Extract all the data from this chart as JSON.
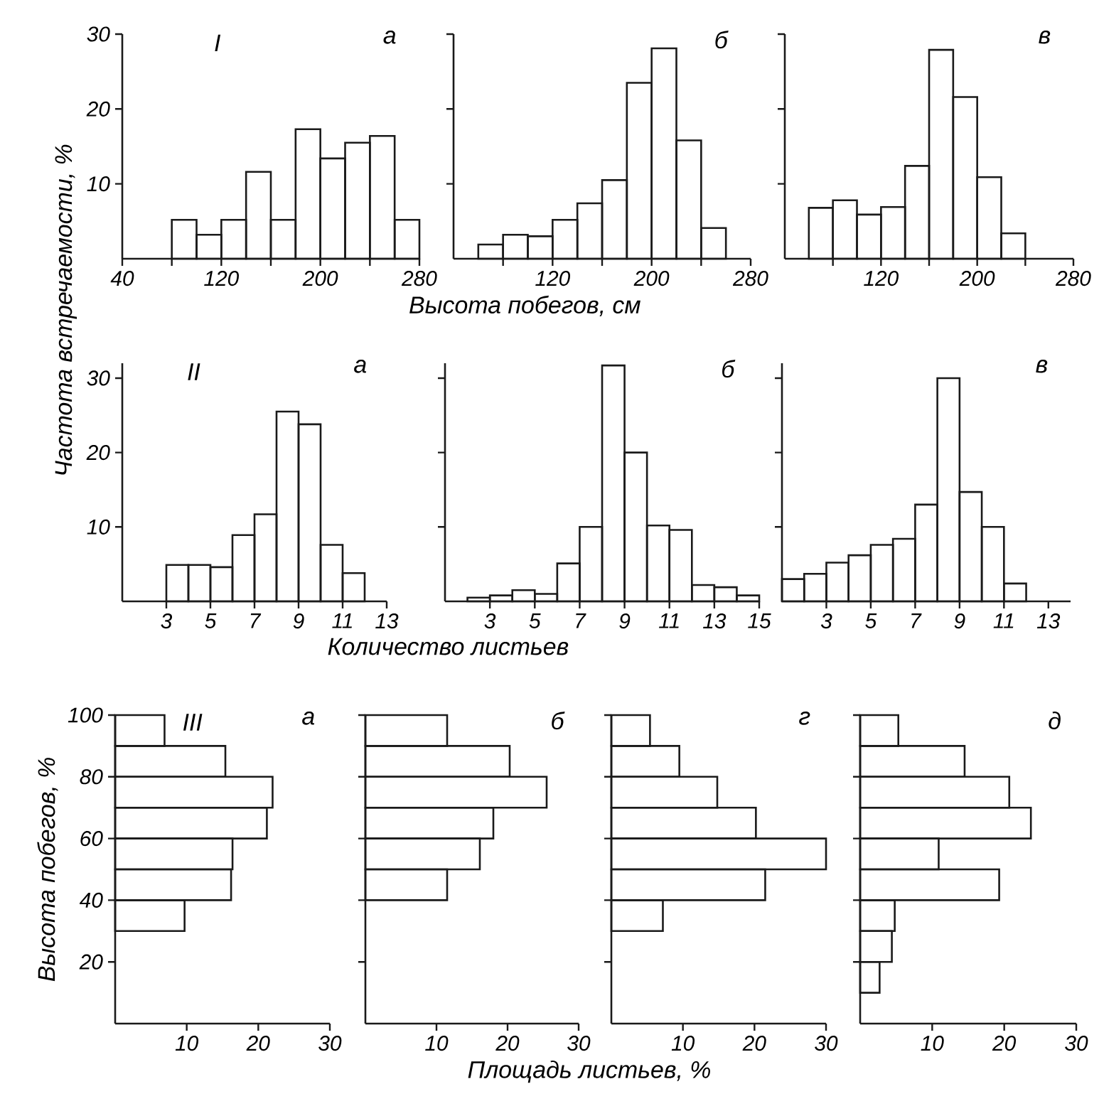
{
  "chart_data": [
    {
      "type": "histogram",
      "title": "а",
      "annotations": [
        "I"
      ],
      "ylabel": "Частота встречаемости, %",
      "color": "#1a1a1a",
      "bins": [
        80,
        100,
        120,
        140,
        160,
        180,
        200,
        220,
        240,
        260,
        280
      ],
      "values": [
        5.2,
        3.2,
        5.2,
        11.6,
        5.2,
        17.3,
        13.4,
        15.5,
        16.4,
        5.2
      ],
      "xlim": [
        40,
        280
      ],
      "ylim": [
        0,
        30
      ],
      "xticks": [
        40,
        {
          "value": 80,
          "label": null
        },
        120,
        {
          "value": 160,
          "label": null
        },
        200,
        {
          "value": 240,
          "label": null
        },
        280
      ],
      "yticks": [
        10,
        20,
        30
      ]
    },
    {
      "type": "histogram",
      "title": "б",
      "xlabel": "Высота побегов, см",
      "color": "#1a1a1a",
      "bins": [
        60,
        80,
        100,
        120,
        140,
        160,
        180,
        200,
        220,
        240,
        260
      ],
      "values": [
        1.9,
        3.2,
        3,
        5.2,
        7.4,
        10.5,
        23.5,
        28.1,
        15.8,
        4.1
      ],
      "xlim": [
        40,
        280
      ],
      "ylim": [
        0,
        30
      ],
      "xticks": [
        {
          "value": 80,
          "label": null
        },
        120,
        {
          "value": 160,
          "label": null
        },
        200,
        {
          "value": 240,
          "label": null
        },
        280
      ],
      "yticks": [
        10,
        20,
        30
      ],
      "tick_labels": "x"
    },
    {
      "type": "histogram",
      "title": "в",
      "color": "#1a1a1a",
      "bins": [
        60,
        80,
        100,
        120,
        140,
        160,
        180,
        200,
        220,
        240
      ],
      "values": [
        6.8,
        7.8,
        5.9,
        6.9,
        12.4,
        27.9,
        21.6,
        10.9,
        3.4
      ],
      "xlim": [
        40,
        280
      ],
      "ylim": [
        0,
        30
      ],
      "xticks": [
        {
          "value": 80,
          "label": null
        },
        120,
        {
          "value": 160,
          "label": null
        },
        200,
        {
          "value": 240,
          "label": null
        },
        280
      ],
      "yticks": [
        10,
        20,
        30
      ],
      "tick_labels": "x"
    },
    {
      "type": "histogram",
      "title": "а",
      "annotations": [
        "II"
      ],
      "color": "#1a1a1a",
      "bins": [
        3,
        4,
        5,
        6,
        7,
        8,
        9,
        10,
        11,
        12
      ],
      "values": [
        4.9,
        4.9,
        4.6,
        8.9,
        11.7,
        25.5,
        23.8,
        7.6,
        3.8
      ],
      "xlim": [
        1,
        13
      ],
      "ylim": [
        0,
        32
      ],
      "xticks": [
        3,
        5,
        7,
        9,
        11,
        13
      ],
      "yticks": [
        10,
        20,
        30
      ]
    },
    {
      "type": "histogram",
      "title": "б",
      "xlabel": "Количество листьев",
      "color": "#1a1a1a",
      "bins": [
        2,
        3,
        4,
        5,
        6,
        7,
        8,
        9,
        10,
        11,
        12,
        13,
        14,
        15
      ],
      "values": [
        0.5,
        0.8,
        1.5,
        1,
        5.1,
        10,
        31.7,
        20,
        10.2,
        9.6,
        2.2,
        1.9,
        0.8
      ],
      "xlim": [
        1,
        15
      ],
      "ylim": [
        0,
        32
      ],
      "xticks": [
        3,
        5,
        7,
        9,
        11,
        13,
        15
      ],
      "yticks": [
        10,
        20,
        30
      ],
      "tick_labels": "x"
    },
    {
      "type": "histogram",
      "title": "в",
      "color": "#1a1a1a",
      "bins": [
        1,
        2,
        3,
        4,
        5,
        6,
        7,
        8,
        9,
        10,
        11,
        12
      ],
      "values": [
        3,
        3.7,
        5.2,
        6.2,
        7.6,
        8.4,
        13,
        30,
        14.7,
        10,
        2.4
      ],
      "xlim": [
        1,
        14
      ],
      "ylim": [
        0,
        32
      ],
      "xticks": [
        3,
        5,
        7,
        9,
        11,
        13
      ],
      "yticks": [
        10,
        20,
        30
      ],
      "tick_labels": "x"
    },
    {
      "type": "histogram",
      "orientation": "horizontal",
      "title": "а",
      "annotations": [
        "III"
      ],
      "ylabel": "Высота побегов, %",
      "color": "#1a1a1a",
      "bins": [
        30,
        40,
        50,
        60,
        70,
        80,
        90,
        100
      ],
      "values": [
        9.7,
        16.2,
        16.4,
        21.2,
        22,
        15.4,
        6.9
      ],
      "xlim": [
        0,
        30
      ],
      "ylim": [
        0,
        100
      ],
      "xticks": [
        10,
        20,
        30
      ],
      "yticks": [
        20,
        40,
        60,
        80,
        100
      ]
    },
    {
      "type": "histogram",
      "orientation": "horizontal",
      "title": "б",
      "xlabel": "Площадь листьев, %",
      "color": "#1a1a1a",
      "bins": [
        40,
        50,
        60,
        70,
        80,
        90,
        100
      ],
      "values": [
        11.5,
        16.1,
        18,
        25.5,
        20.3,
        11.5
      ],
      "xlim": [
        0,
        30
      ],
      "ylim": [
        0,
        100
      ],
      "xticks": [
        10,
        20,
        30
      ],
      "yticks": [
        20,
        40,
        60,
        80,
        100
      ],
      "tick_labels": "x"
    },
    {
      "type": "histogram",
      "orientation": "horizontal",
      "title": "г",
      "color": "#1a1a1a",
      "bins": [
        30,
        40,
        50,
        60,
        70,
        80,
        90,
        100
      ],
      "values": [
        7.2,
        21.5,
        30,
        20.2,
        14.8,
        9.5,
        5.4
      ],
      "xlim": [
        0,
        30
      ],
      "ylim": [
        0,
        100
      ],
      "xticks": [
        10,
        20,
        30
      ],
      "yticks": [
        20,
        40,
        60,
        80,
        100
      ],
      "tick_labels": "x"
    },
    {
      "type": "histogram",
      "orientation": "horizontal",
      "title": "д",
      "color": "#1a1a1a",
      "bins": [
        10,
        20,
        30,
        40,
        50,
        60,
        70,
        80,
        90,
        100
      ],
      "values": [
        2.7,
        4.4,
        4.8,
        19.3,
        10.9,
        23.7,
        20.7,
        14.5,
        5.3
      ],
      "xlim": [
        0,
        30
      ],
      "ylim": [
        0,
        100
      ],
      "xticks": [
        10,
        20,
        30
      ],
      "yticks": [
        20,
        40,
        60,
        80,
        100
      ],
      "tick_labels": "x"
    }
  ]
}
